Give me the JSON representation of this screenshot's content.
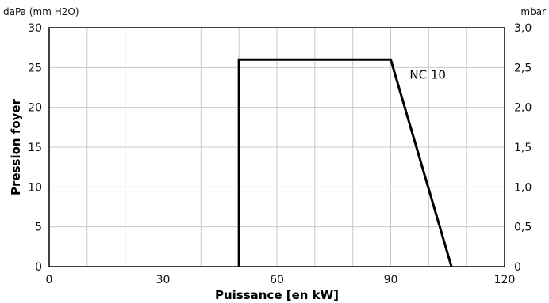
{
  "chart_data": {
    "type": "line",
    "xlabel": "Puissance [en kW]",
    "ylabel": "Pression foyer",
    "y_unit_left": "daPa (mm H2O)",
    "y_unit_right": "mbar",
    "xlim": [
      0,
      120
    ],
    "ylim": [
      0,
      30
    ],
    "x_ticks": [
      "0",
      "30",
      "60",
      "90",
      "120"
    ],
    "x_tick_values": [
      0,
      30,
      60,
      90,
      120
    ],
    "y_ticks_left": [
      "0",
      "5",
      "10",
      "15",
      "20",
      "25",
      "30"
    ],
    "y_tick_values": [
      0,
      5,
      10,
      15,
      20,
      25,
      30
    ],
    "y_ticks_right": [
      "0",
      "0,5",
      "1,0",
      "1,5",
      "2,0",
      "2,5",
      "3,0"
    ],
    "x_grid_step": 10,
    "y_grid_step": 5,
    "grid": true,
    "series": [
      {
        "name": "NC 10",
        "x": [
          50,
          50,
          90,
          106
        ],
        "y": [
          0,
          26,
          26,
          0
        ]
      }
    ],
    "annotations": [
      {
        "text": "NC 10",
        "x": 95,
        "y": 23.6
      }
    ]
  }
}
